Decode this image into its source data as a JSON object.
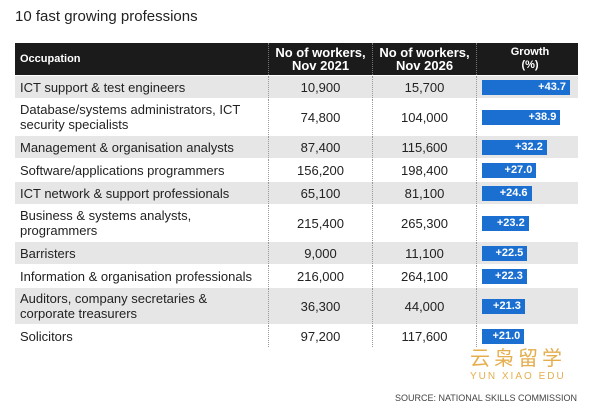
{
  "title": "10 fast growing professions",
  "table": {
    "columns": [
      "Occupation",
      "No of workers, Nov 2021",
      "No of workers, Nov 2026",
      "Growth (%)"
    ],
    "rows": [
      {
        "occupation": "ICT support & test engineers",
        "workers_2021": "10,900",
        "workers_2026": "15,700",
        "growth": 43.7,
        "growth_label": "+43.7"
      },
      {
        "occupation": "Database/systems administrators, ICT security specialists",
        "workers_2021": "74,800",
        "workers_2026": "104,000",
        "growth": 38.9,
        "growth_label": "+38.9"
      },
      {
        "occupation": "Management & organisation analysts",
        "workers_2021": "87,400",
        "workers_2026": "115,600",
        "growth": 32.2,
        "growth_label": "+32.2"
      },
      {
        "occupation": "Software/applications programmers",
        "workers_2021": "156,200",
        "workers_2026": "198,400",
        "growth": 27.0,
        "growth_label": "+27.0"
      },
      {
        "occupation": "ICT network & support professionals",
        "workers_2021": "65,100",
        "workers_2026": "81,100",
        "growth": 24.6,
        "growth_label": "+24.6"
      },
      {
        "occupation": "Business & systems analysts, programmers",
        "workers_2021": "215,400",
        "workers_2026": "265,300",
        "growth": 23.2,
        "growth_label": "+23.2"
      },
      {
        "occupation": "Barristers",
        "workers_2021": "9,000",
        "workers_2026": "11,100",
        "growth": 22.5,
        "growth_label": "+22.5"
      },
      {
        "occupation": "Information & organisation professionals",
        "workers_2021": "216,000",
        "workers_2026": "264,100",
        "growth": 22.3,
        "growth_label": "+22.3"
      },
      {
        "occupation": "Auditors, company secretaries & corporate treasurers",
        "workers_2021": "36,300",
        "workers_2026": "44,000",
        "growth": 21.3,
        "growth_label": "+21.3"
      },
      {
        "occupation": "Solicitors",
        "workers_2021": "97,200",
        "workers_2026": "117,600",
        "growth": 21.0,
        "growth_label": "+21.0"
      }
    ]
  },
  "source": "SOURCE: NATIONAL SKILLS COMMISSION",
  "watermark": {
    "title": "云枭留学",
    "subtitle": "YUN XIAO EDU"
  }
}
